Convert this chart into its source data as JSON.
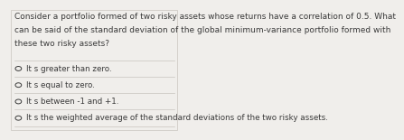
{
  "question": "Consider a portfolio formed of two risky assets whose returns have a correlation of 0.5. What\ncan be said of the standard deviation of the global minimum-variance portfolio formed with\nthese two risky assets?",
  "options": [
    "It s greater than zero.",
    "It s equal to zero.",
    "It s between -1 and +1.",
    "It s the weighted average of the standard deviations of the two risky assets."
  ],
  "bg_color": "#f0eeeb",
  "text_color": "#3a3a3a",
  "divider_color": "#c8c4be",
  "question_fontsize": 6.5,
  "option_fontsize": 6.3,
  "fig_width": 3.5,
  "fig_height": 1.38
}
